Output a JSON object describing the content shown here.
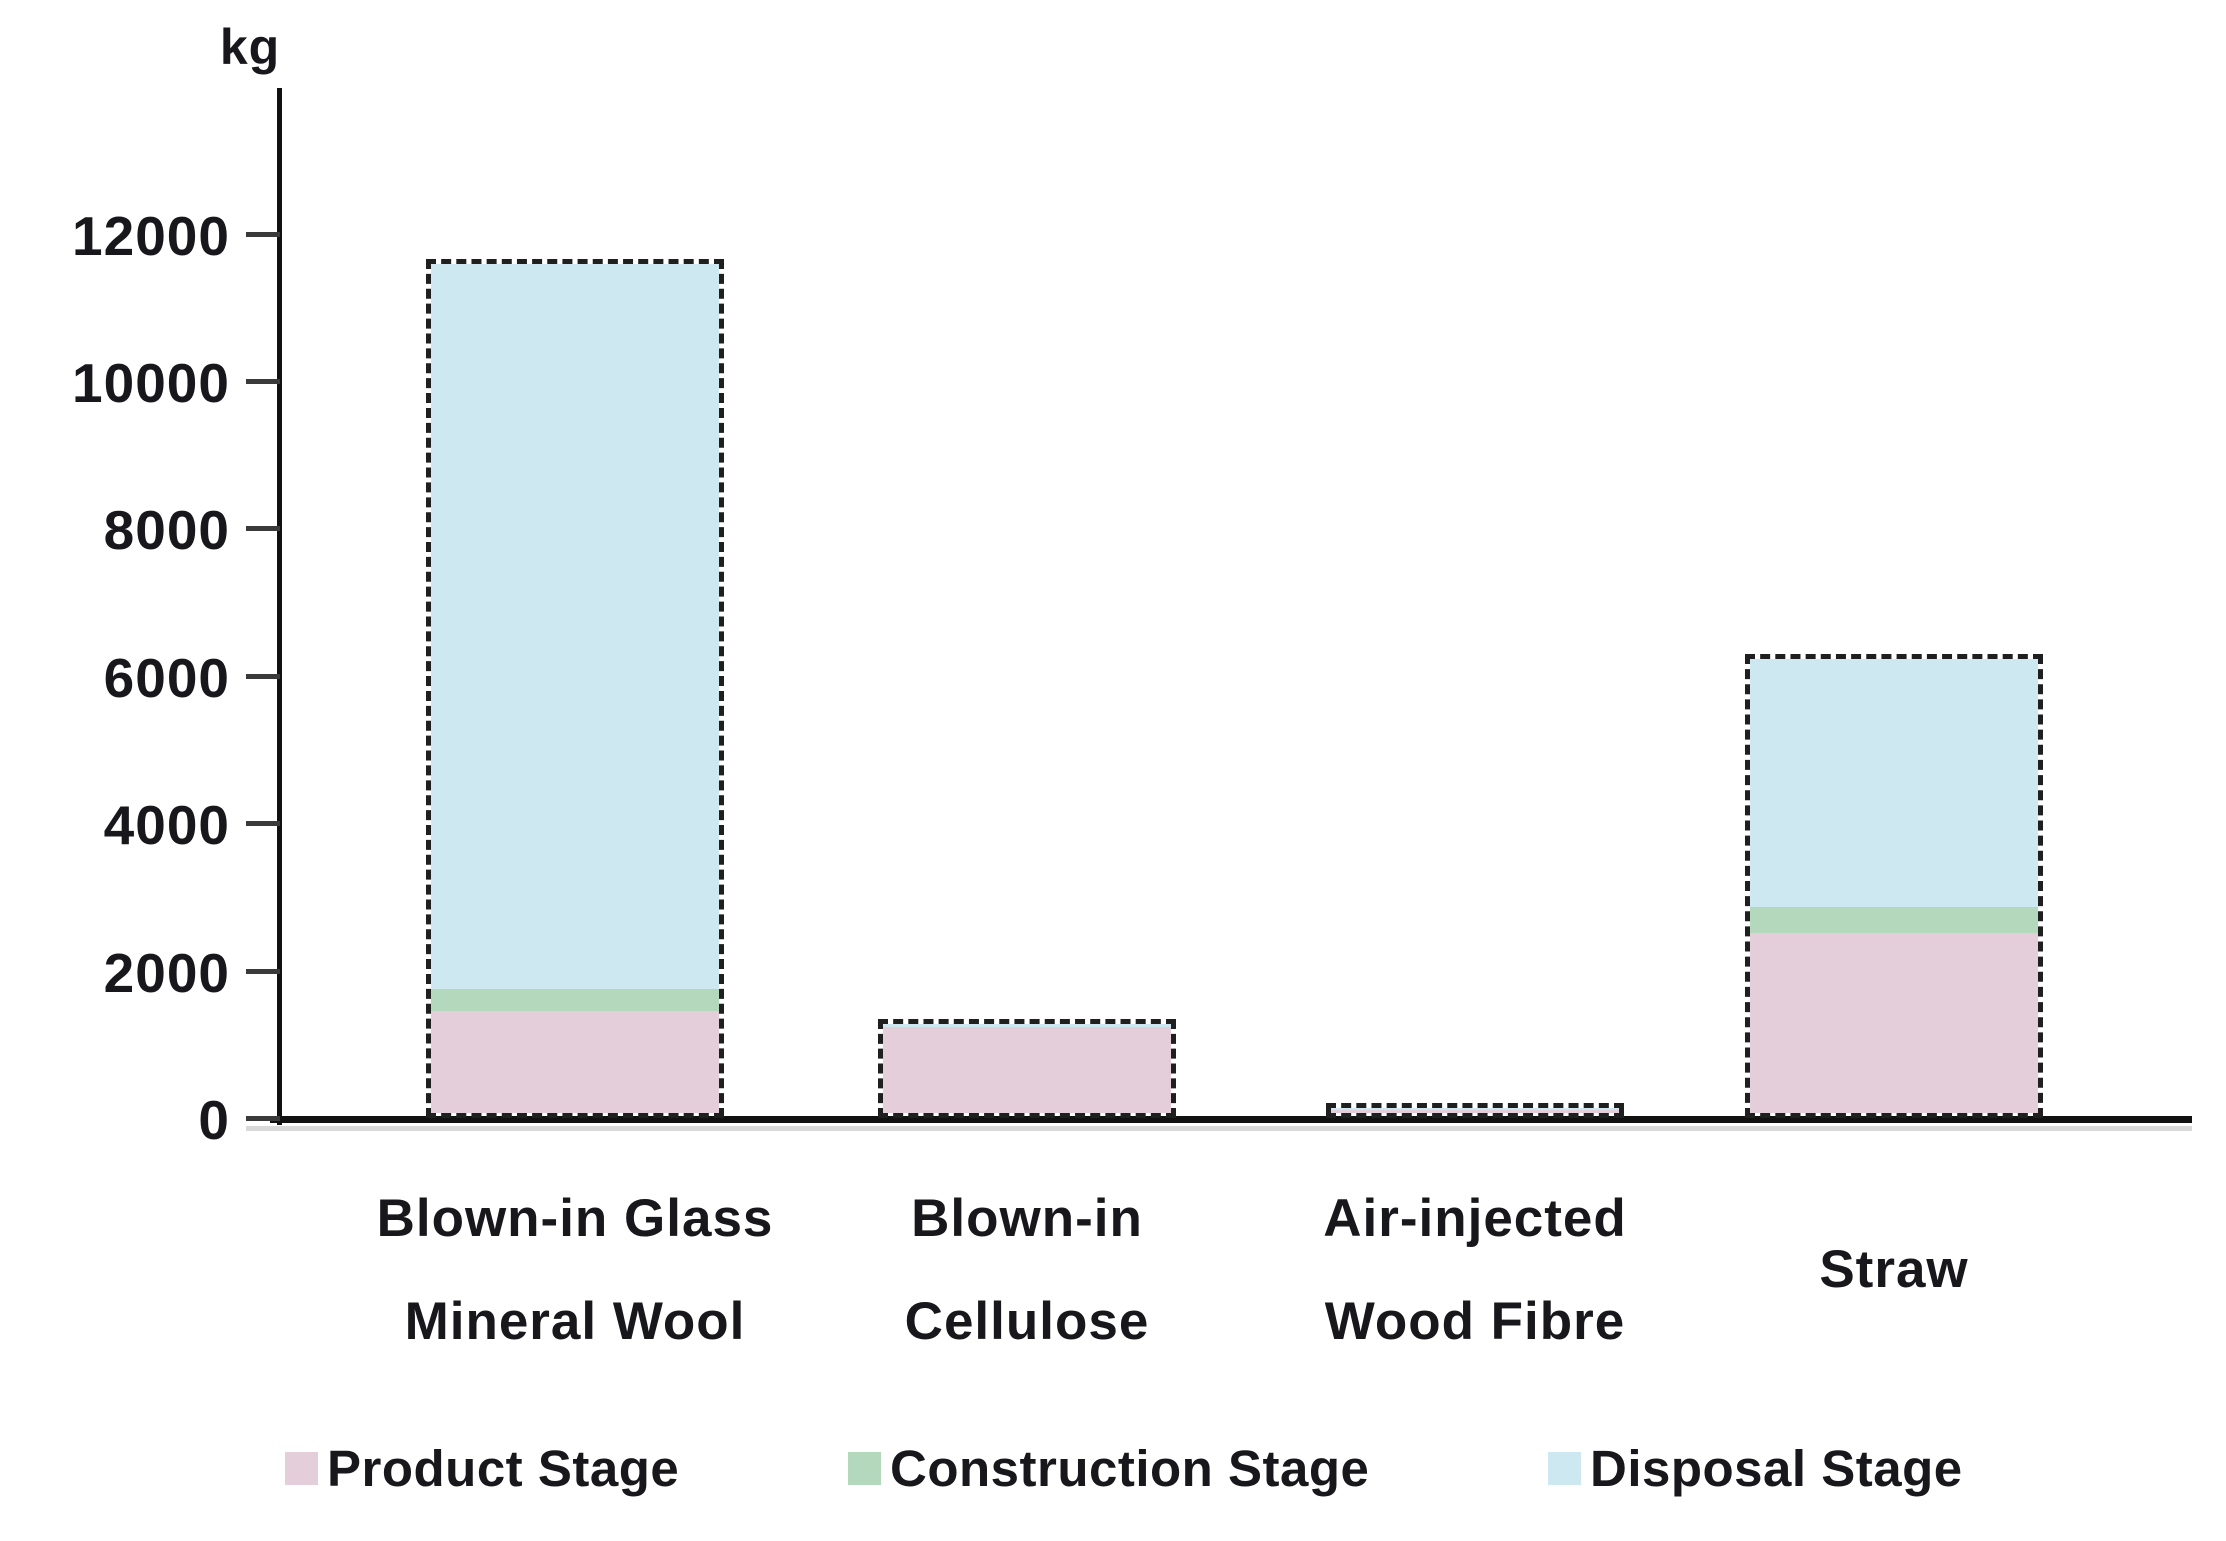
{
  "page": {
    "background": "#ffffff",
    "ink_color": "#17171c"
  },
  "chart_data": {
    "type": "bar",
    "stacked": true,
    "title": "",
    "unit_label": "kg",
    "xlabel": "",
    "ylabel": "kg",
    "ylim": [
      0,
      14000
    ],
    "yticks": [
      0,
      2000,
      4000,
      6000,
      8000,
      10000,
      12000
    ],
    "grid": false,
    "legend_position": "bottom",
    "bar_outline": {
      "style": "dashed",
      "color": "#1f1f1f"
    },
    "categories": [
      "Blown-in Glass Mineral Wool",
      "Blown-in Cellulose",
      "Air-injected Wood Fibre",
      "Straw"
    ],
    "category_label_lines": [
      [
        "Blown-in Glass",
        "Mineral Wool"
      ],
      [
        "Blown-in",
        "Cellulose"
      ],
      [
        "Air-injected",
        "Wood Fibre"
      ],
      [
        "Straw"
      ]
    ],
    "series": [
      {
        "name": "Product Stage",
        "color": "#e3ced9",
        "values": [
          1400,
          1300,
          120,
          2500
        ]
      },
      {
        "name": "Construction Stage",
        "color": "#b3d8bb",
        "values": [
          300,
          0,
          0,
          350
        ]
      },
      {
        "name": "Disposal Stage",
        "color": "#cee8f2",
        "values": [
          9950,
          50,
          80,
          3450
        ]
      }
    ],
    "totals": [
      11650,
      1350,
      200,
      6300
    ]
  }
}
